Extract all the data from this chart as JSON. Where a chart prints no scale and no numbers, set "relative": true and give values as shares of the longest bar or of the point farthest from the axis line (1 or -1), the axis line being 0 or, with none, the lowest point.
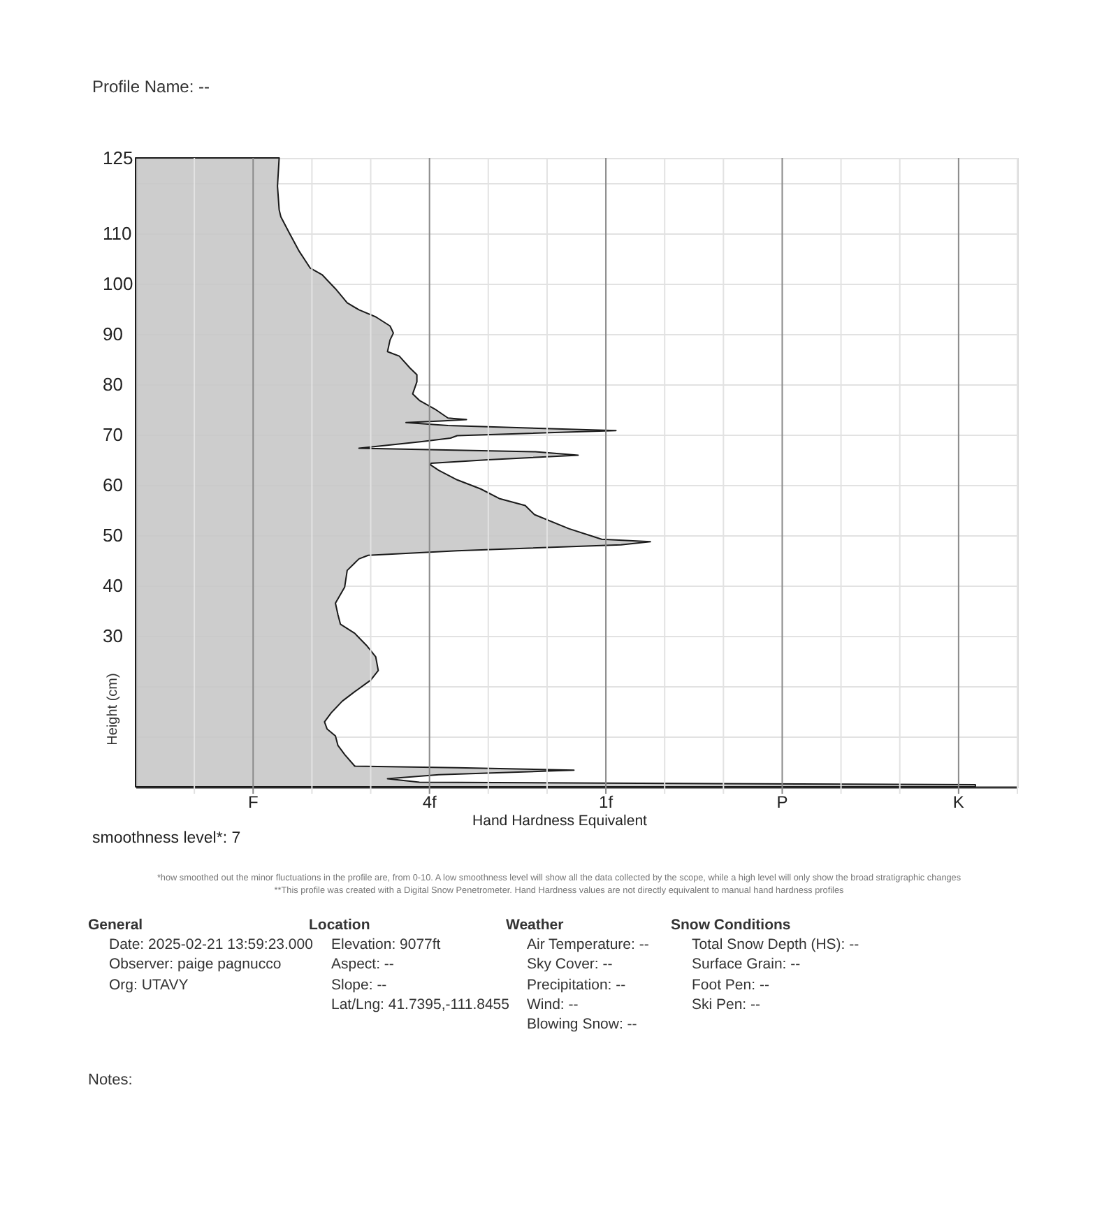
{
  "chart_data": {
    "type": "area",
    "orientation": "horizontal",
    "relative": true,
    "title": "Profile Name: --",
    "xlabel": "Hand Hardness Equivalent",
    "ylabel": "Height (cm)",
    "series": [
      {
        "color": "#c8c8c8",
        "x": [
          125,
          119.4,
          114.7,
          113.3,
          110.1,
          106.4,
          103.1,
          101.8,
          99.0,
          96.2,
          94.8,
          93.4,
          91.6,
          90.2,
          88.8,
          86.5,
          85.6,
          83.2,
          81.9,
          80.5,
          78.1,
          76.8,
          74.9,
          73.3,
          73.0,
          72.7,
          72.4,
          71.8,
          70.8,
          69.8,
          69.3,
          68.6,
          67.3,
          66.6,
          65.9,
          65.0,
          64.3,
          64.0,
          62.9,
          61.0,
          59.2,
          57.3,
          55.9,
          54.1,
          51.3,
          49.2,
          48.7,
          48.1,
          46.9,
          46.0,
          45.3,
          43.0,
          39.7,
          36.5,
          34.2,
          32.3,
          30.5,
          28.1,
          25.8,
          23.1,
          21.2,
          18.9,
          17.0,
          14.7,
          12.9,
          11.5,
          10.1,
          8.2,
          6.4,
          4.1,
          3.8,
          3.3,
          2.4,
          1.6,
          0.9,
          0.4,
          0
        ],
        "values": [
          0.171,
          0.169,
          0.171,
          0.173,
          0.183,
          0.195,
          0.208,
          0.222,
          0.238,
          0.252,
          0.266,
          0.286,
          0.303,
          0.307,
          0.303,
          0.3,
          0.314,
          0.327,
          0.335,
          0.335,
          0.33,
          0.338,
          0.358,
          0.372,
          0.394,
          0.364,
          0.322,
          0.372,
          0.572,
          0.383,
          0.375,
          0.341,
          0.266,
          0.476,
          0.527,
          0.42,
          0.352,
          0.351,
          0.361,
          0.383,
          0.411,
          0.433,
          0.464,
          0.475,
          0.516,
          0.555,
          0.613,
          0.578,
          0.383,
          0.277,
          0.266,
          0.252,
          0.249,
          0.238,
          0.241,
          0.244,
          0.261,
          0.275,
          0.286,
          0.289,
          0.28,
          0.261,
          0.246,
          0.233,
          0.225,
          0.228,
          0.238,
          0.241,
          0.249,
          0.261,
          0.383,
          0.522,
          0.361,
          0.3,
          0.338,
          1,
          1
        ]
      }
    ],
    "ylim": [
      0,
      125
    ],
    "yticks": [
      {
        "value": 0,
        "label": null
      },
      {
        "value": 10,
        "label": null
      },
      {
        "value": 20,
        "label": null
      },
      30,
      40,
      50,
      60,
      70,
      80,
      90,
      100,
      110,
      {
        "value": 120,
        "label": null
      },
      125
    ],
    "grid": "y",
    "ref_lines": [
      {
        "axis": "x",
        "value": 0.07,
        "color": "#e2e2e2"
      },
      {
        "axis": "x",
        "value": 0.14,
        "label": "F",
        "color": "#8a8a8a"
      },
      {
        "axis": "x",
        "value": 0.21,
        "color": "#e2e2e2"
      },
      {
        "axis": "x",
        "value": 0.28,
        "color": "#e2e2e2"
      },
      {
        "axis": "x",
        "value": 0.35,
        "label": "4f",
        "color": "#8a8a8a"
      },
      {
        "axis": "x",
        "value": 0.42,
        "color": "#e2e2e2"
      },
      {
        "axis": "x",
        "value": 0.49,
        "color": "#e2e2e2"
      },
      {
        "axis": "x",
        "value": 0.56,
        "label": "1f",
        "color": "#8a8a8a"
      },
      {
        "axis": "x",
        "value": 0.63,
        "color": "#e2e2e2"
      },
      {
        "axis": "x",
        "value": 0.7,
        "color": "#e2e2e2"
      },
      {
        "axis": "x",
        "value": 0.77,
        "label": "P",
        "color": "#8a8a8a"
      },
      {
        "axis": "x",
        "value": 0.84,
        "color": "#e2e2e2"
      },
      {
        "axis": "x",
        "value": 0.91,
        "color": "#e2e2e2"
      },
      {
        "axis": "x",
        "value": 0.98,
        "label": "K",
        "color": "#8a8a8a"
      },
      {
        "axis": "x",
        "value": 1.05,
        "color": "#e2e2e2"
      }
    ],
    "annotations": [
      "smoothness level*: 7",
      "*how smoothed out the minor fluctuations in the profile are, from 0-10.  A low smoothness level will show all the data collected by the scope, while a high level will only show the broad stratigraphic changes",
      "**This profile was created with a Digital Snow Penetrometer.  Hand Hardness values are not directly equivalent to manual hand hardness profiles",
      "General",
      "Date: 2025-02-21 13:59:23.000",
      "Observer: paige pagnucco",
      "Org: UTAVY",
      "Location",
      "Elevation: 9077ft",
      "Aspect: --",
      "Slope: --",
      "Lat/Lng: 41.7395,-111.8455",
      "Weather",
      "Air Temperature: --",
      "Sky Cover: --",
      "Precipitation: --",
      "Wind: --",
      "Blowing Snow: --",
      "Snow Conditions",
      "Total Snow Depth (HS): --",
      "Surface Grain: --",
      "Foot Pen: --",
      "Ski Pen: --",
      "Notes:"
    ]
  }
}
